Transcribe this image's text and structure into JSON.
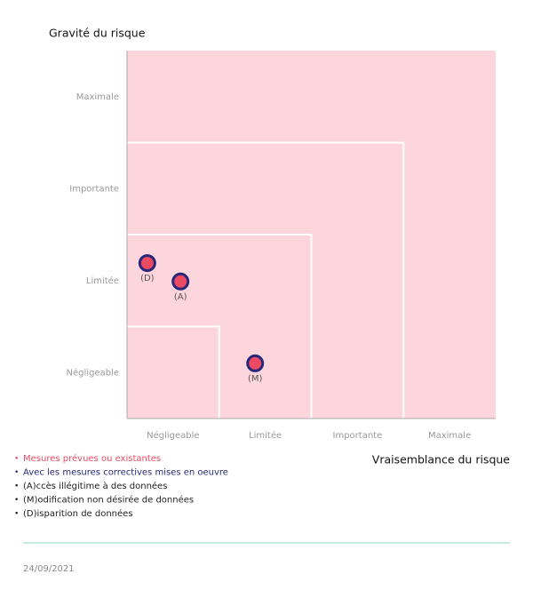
{
  "chart_data": {
    "type": "scatter",
    "y_title": "Gravité du risque",
    "x_title": "Vraisemblance du risque",
    "xlim": [
      0,
      4
    ],
    "ylim": [
      0,
      4
    ],
    "xticks": [
      {
        "value": 0.5,
        "label": "Négligeable"
      },
      {
        "value": 1.5,
        "label": "Limitée"
      },
      {
        "value": 2.5,
        "label": "Importante"
      },
      {
        "value": 3.5,
        "label": "Maximale"
      }
    ],
    "yticks": [
      {
        "value": 0.5,
        "label": "Négligeable"
      },
      {
        "value": 1.5,
        "label": "Limitée"
      },
      {
        "value": 2.5,
        "label": "Importante"
      },
      {
        "value": 3.5,
        "label": "Maximale"
      }
    ],
    "zones": [
      1,
      2,
      3
    ],
    "background": "#fdd5dc",
    "color": "#ec4a63",
    "edge_color": "#27287a",
    "points": [
      {
        "label": "(D)",
        "x": 0.22,
        "y": 1.69
      },
      {
        "label": "(A)",
        "x": 0.58,
        "y": 1.49
      },
      {
        "label": "(M)",
        "x": 1.39,
        "y": 0.6
      }
    ],
    "legend": [
      {
        "text": "Mesures prévues ou existantes",
        "color": "#ec4a63"
      },
      {
        "text": "Avec les mesures correctives mises en oeuvre",
        "color": "#27287a"
      },
      {
        "text": "(A)ccès illégitime à des données",
        "color": "#222222"
      },
      {
        "text": "(M)odification non désirée de données",
        "color": "#222222"
      },
      {
        "text": "(D)isparition de données",
        "color": "#222222"
      }
    ]
  },
  "footer": {
    "date": "24/09/2021"
  }
}
